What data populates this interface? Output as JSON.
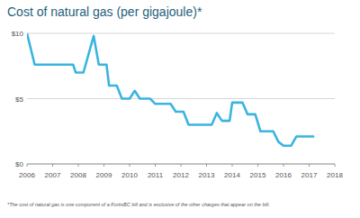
{
  "chart_data": {
    "type": "line",
    "title": "Cost of natural gas (per gigajoule)*",
    "annotations": [
      "*The cost of natural gas is one component of a FortisBC bill and is exclusive of the other charges that appear on the bill."
    ],
    "x": [
      2006.0,
      2006.3,
      2007.8,
      2007.9,
      2008.2,
      2008.6,
      2008.8,
      2009.1,
      2009.2,
      2009.5,
      2009.7,
      2010.0,
      2010.2,
      2010.4,
      2010.8,
      2011.0,
      2011.6,
      2011.8,
      2012.1,
      2012.3,
      2013.2,
      2013.4,
      2013.6,
      2013.9,
      2014.0,
      2014.4,
      2014.6,
      2014.9,
      2015.1,
      2015.6,
      2015.8,
      2016.0,
      2016.3,
      2016.5,
      2017.2
    ],
    "values": [
      10.0,
      7.6,
      7.6,
      7.0,
      7.0,
      9.8,
      7.6,
      7.6,
      6.0,
      6.0,
      5.0,
      5.0,
      5.6,
      5.0,
      5.0,
      4.6,
      4.6,
      4.0,
      4.0,
      3.0,
      3.0,
      3.9,
      3.3,
      3.3,
      4.7,
      4.7,
      3.8,
      3.8,
      2.5,
      2.5,
      1.7,
      1.4,
      1.4,
      2.1,
      2.1
    ],
    "color": "#3ab4df",
    "xlim": [
      2006,
      2018
    ],
    "xticks": [
      2006,
      2007,
      2008,
      2009,
      2010,
      2011,
      2012,
      2013,
      2014,
      2015,
      2016,
      2017,
      2018
    ],
    "ylim": [
      0,
      10
    ],
    "yticks": [
      {
        "value": 0,
        "label": "$0"
      },
      {
        "value": 5,
        "label": "$5"
      },
      {
        "value": 10,
        "label": "$10"
      }
    ],
    "grid": true
  }
}
